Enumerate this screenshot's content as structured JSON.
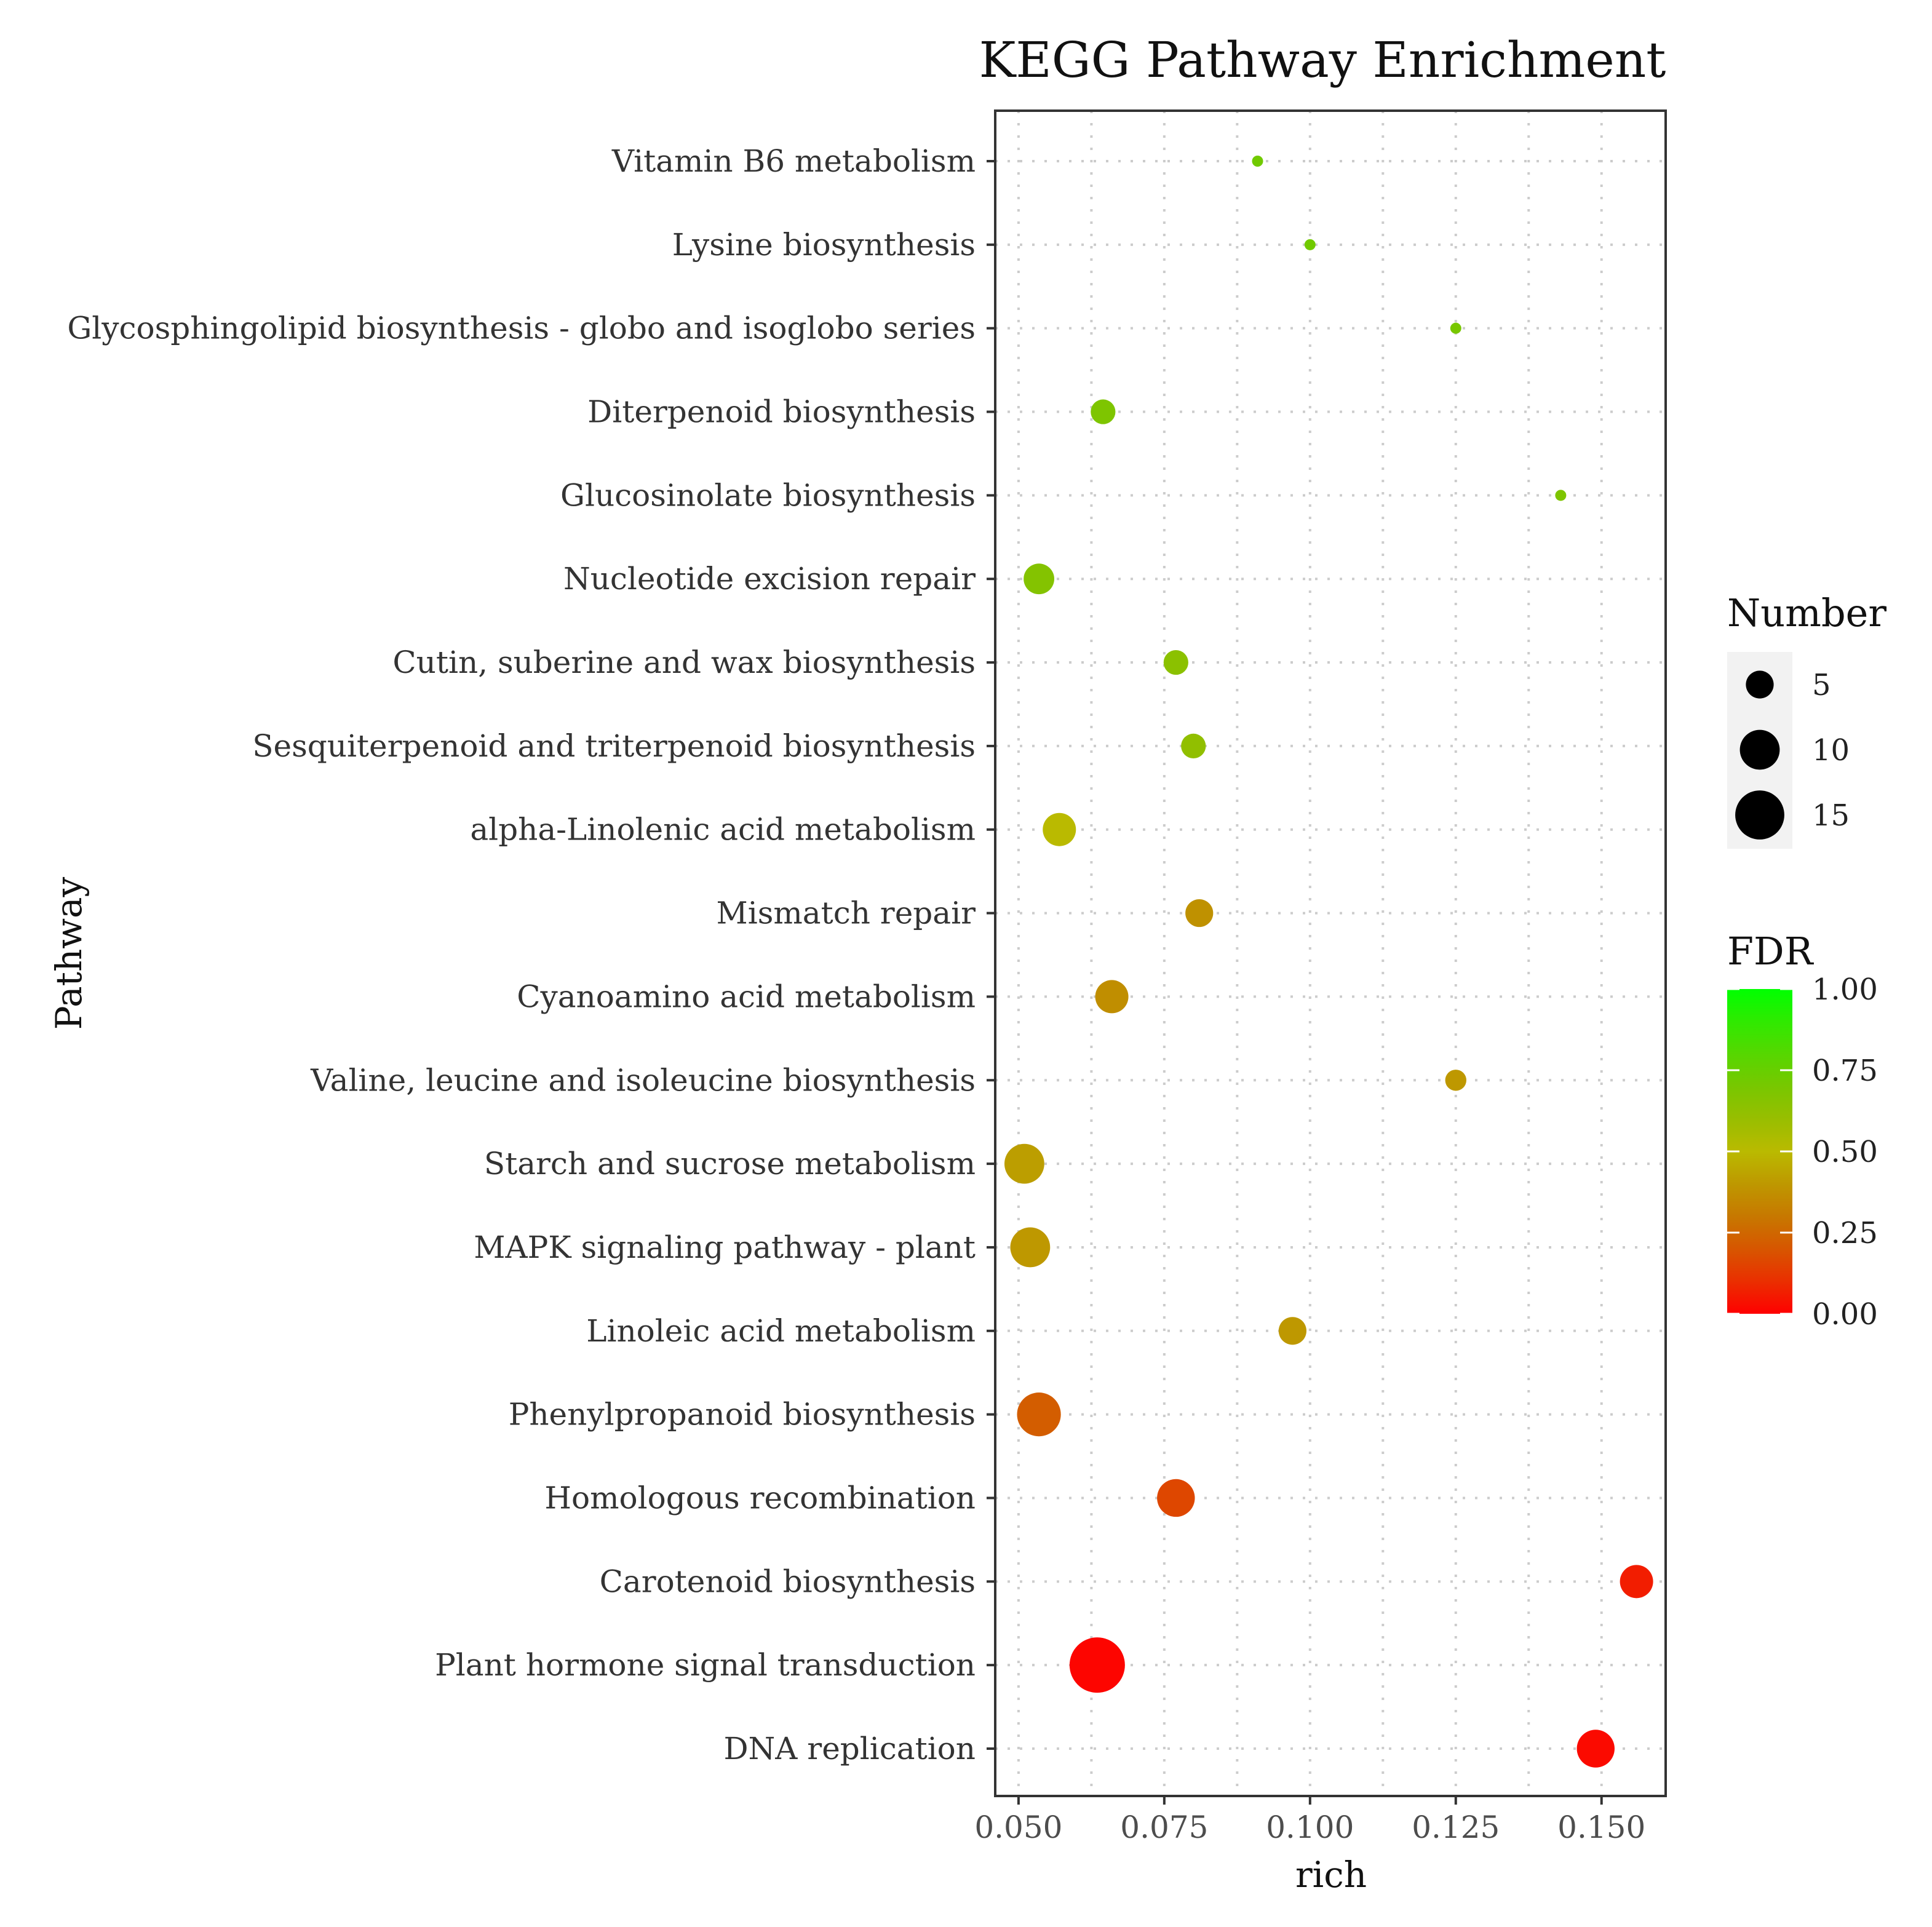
{
  "chart_data": {
    "type": "scatter",
    "title": "KEGG Pathway Enrichment",
    "xlabel": "rich",
    "ylabel": "Pathway",
    "xlim": [
      0.046,
      0.161
    ],
    "x_ticks": [
      0.05,
      0.075,
      0.1,
      0.125,
      0.15
    ],
    "x_tick_labels": [
      "0.050",
      "0.075",
      "0.100",
      "0.125",
      "0.150"
    ],
    "grid": true,
    "points": [
      {
        "pathway": "Vitamin B6 metabolism",
        "rich": 0.091,
        "number": 1,
        "fdr": 0.72
      },
      {
        "pathway": "Lysine biosynthesis",
        "rich": 0.1,
        "number": 1,
        "fdr": 0.72
      },
      {
        "pathway": "Glycosphingolipid biosynthesis - globo and isoglobo series",
        "rich": 0.125,
        "number": 1,
        "fdr": 0.7
      },
      {
        "pathway": "Diterpenoid biosynthesis",
        "rich": 0.0645,
        "number": 4,
        "fdr": 0.68
      },
      {
        "pathway": "Glucosinolate biosynthesis",
        "rich": 0.143,
        "number": 1,
        "fdr": 0.68
      },
      {
        "pathway": "Nucleotide excision repair",
        "rich": 0.0535,
        "number": 6,
        "fdr": 0.66
      },
      {
        "pathway": "Cutin, suberine and wax biosynthesis",
        "rich": 0.077,
        "number": 4,
        "fdr": 0.64
      },
      {
        "pathway": "Sesquiterpenoid and triterpenoid biosynthesis",
        "rich": 0.08,
        "number": 4,
        "fdr": 0.62
      },
      {
        "pathway": "alpha-Linolenic acid metabolism",
        "rich": 0.057,
        "number": 7,
        "fdr": 0.5
      },
      {
        "pathway": "Mismatch repair",
        "rich": 0.081,
        "number": 5,
        "fdr": 0.38
      },
      {
        "pathway": "Cyanoamino acid metabolism",
        "rich": 0.066,
        "number": 7,
        "fdr": 0.37
      },
      {
        "pathway": "Valine, leucine and isoleucine biosynthesis",
        "rich": 0.125,
        "number": 3,
        "fdr": 0.4
      },
      {
        "pathway": "Starch and sucrose metabolism",
        "rich": 0.051,
        "number": 10,
        "fdr": 0.42
      },
      {
        "pathway": "MAPK signaling pathway - plant",
        "rich": 0.052,
        "number": 10,
        "fdr": 0.4
      },
      {
        "pathway": "Linoleic acid metabolism",
        "rich": 0.097,
        "number": 5,
        "fdr": 0.4
      },
      {
        "pathway": "Phenylpropanoid biosynthesis",
        "rich": 0.0535,
        "number": 12,
        "fdr": 0.22
      },
      {
        "pathway": "Homologous recombination",
        "rich": 0.077,
        "number": 9,
        "fdr": 0.16
      },
      {
        "pathway": "Carotenoid biosynthesis",
        "rich": 0.156,
        "number": 7,
        "fdr": 0.06
      },
      {
        "pathway": "Plant hormone signal transduction",
        "rich": 0.0635,
        "number": 19,
        "fdr": 0.01
      },
      {
        "pathway": "DNA replication",
        "rich": 0.149,
        "number": 9,
        "fdr": 0.02
      }
    ],
    "legend": {
      "size_title": "Number",
      "size_breaks": [
        5,
        10,
        15
      ],
      "size_labels": [
        "5",
        "10",
        "15"
      ],
      "color_title": "FDR",
      "color_breaks": [
        0.0,
        0.25,
        0.5,
        0.75,
        1.0
      ],
      "color_labels": [
        "0.00",
        "0.25",
        "0.50",
        "0.75",
        "1.00"
      ],
      "color_low": "#ff0000",
      "color_high": "#00ff00",
      "placement": "right"
    }
  }
}
